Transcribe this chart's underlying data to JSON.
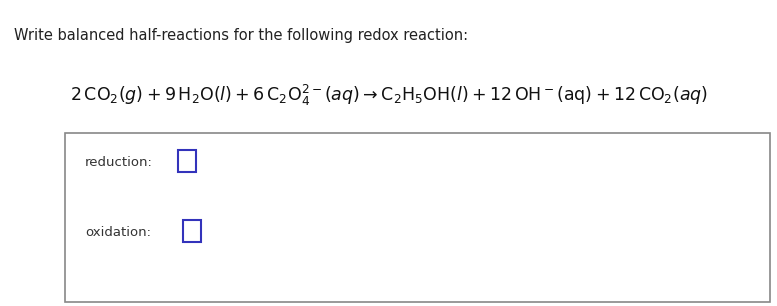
{
  "title": "Write balanced half-reactions for the following redox reaction:",
  "title_fontsize": 10.5,
  "title_color": "#222222",
  "background_color": "#f0f4f8",
  "equation_color": "#111111",
  "label_color": "#333333",
  "box_edge_color": "#888888",
  "input_box_color": "#3333bb",
  "reduction_label": "reduction:",
  "oxidation_label": "oxidation:",
  "label_fontsize": 9.5,
  "equation_fontsize": 12.5,
  "figsize": [
    7.77,
    3.06
  ],
  "dpi": 100,
  "fig_bg": "#f0f4f8",
  "white": "#ffffff"
}
